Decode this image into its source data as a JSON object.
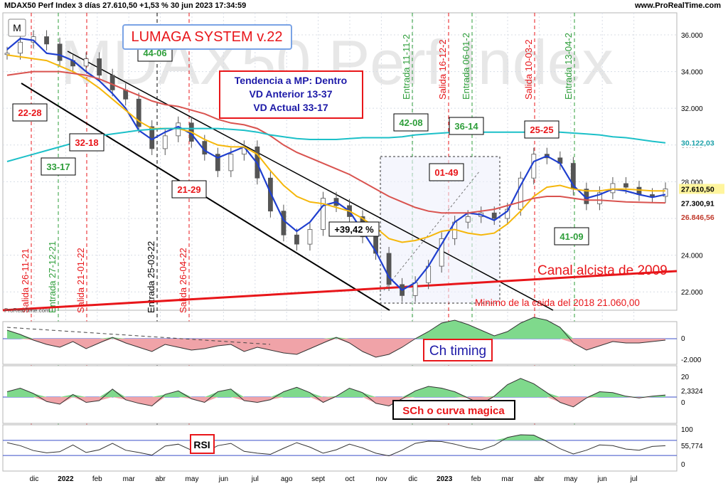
{
  "header": {
    "title": "MDAX50 Perf Index 3 días 27.610,50 +1,53 % 30 jun 2023 17:34:59",
    "site": "www.ProRealTime.com",
    "m_label": "M"
  },
  "colors": {
    "grid": "#d8dde6",
    "candle": "#555555",
    "ma_fast": "#1f3fcf",
    "ma_mid": "#f5b70b",
    "ma_slow": "#d9534f",
    "ma_long": "#1cc0c8",
    "channel": "#000000",
    "trend_red": "#e8161a",
    "entry_green": "#2e9e3a",
    "exit_red": "#e8161a",
    "ind_pos": "#7fd98c",
    "ind_neg": "#f0a3a8"
  },
  "chart_data": [
    {
      "type": "line",
      "title": "MDAX50 Perf Index",
      "watermark": "MDAX50 Perf Index",
      "system_label": "LUMAGA SYSTEM v.22",
      "ylim": [
        21000,
        37200
      ],
      "y_ticks": [
        "36.000",
        "34.000",
        "32.000",
        "30.000",
        "28.000",
        "26.000",
        "24.000",
        "22.000"
      ],
      "y_tick_values": [
        36000,
        34000,
        32000,
        30000,
        28000,
        26000,
        24000,
        22000
      ],
      "x_labels": [
        "dic",
        "2022",
        "feb",
        "mar",
        "abr",
        "may",
        "jun",
        "jul",
        "ago",
        "sept",
        "oct",
        "nov",
        "dic",
        "2023",
        "feb",
        "mar",
        "abr",
        "may",
        "jun",
        "jul"
      ],
      "price_labels": {
        "last": "27.610,50",
        "fast": "27.300,91",
        "slow": "26.846,56",
        "long": "30.122,03"
      },
      "series": [
        {
          "name": "price",
          "values": [
            35000,
            35600,
            35900,
            35500,
            34600,
            34300,
            34700,
            33800,
            33000,
            32500,
            31000,
            29800,
            30500,
            31200,
            30200,
            29500,
            28600,
            29500,
            29900,
            28200,
            26400,
            25100,
            24600,
            25400,
            27100,
            26700,
            26100,
            25000,
            24100,
            22400,
            21800,
            22500,
            23400,
            24900,
            25800,
            26100,
            26300,
            26000,
            26500,
            28200,
            29500,
            29300,
            29000,
            27600,
            26800,
            27400,
            27900,
            27700,
            27300,
            27200,
            27610
          ]
        },
        {
          "name": "ma_fast",
          "values": [
            35200,
            35800,
            35700,
            35000,
            34900,
            34600,
            34000,
            33500,
            32800,
            32000,
            30800,
            30300,
            30700,
            31000,
            30600,
            29700,
            29300,
            29600,
            29900,
            29000,
            27400,
            25900,
            25300,
            25800,
            26700,
            26900,
            26400,
            25300,
            24200,
            22800,
            22100,
            22500,
            23400,
            24600,
            25800,
            26300,
            26200,
            25900,
            26400,
            27800,
            29100,
            29400,
            29000,
            27800,
            27100,
            27300,
            27600,
            27500,
            27300,
            27150,
            27300
          ]
        },
        {
          "name": "ma_mid",
          "values": [
            34900,
            34800,
            34700,
            34600,
            34300,
            34000,
            33600,
            33100,
            32500,
            31900,
            31300,
            30900,
            30900,
            30900,
            30700,
            30300,
            30000,
            29900,
            29900,
            29500,
            28600,
            27800,
            27200,
            26900,
            26800,
            26600,
            26400,
            26000,
            25500,
            24900,
            24700,
            24800,
            25000,
            25300,
            25400,
            25200,
            25100,
            25200,
            25700,
            26400,
            27200,
            27700,
            27800,
            27600,
            27500,
            27500,
            27600,
            27600,
            27550,
            27500,
            27500
          ]
        },
        {
          "name": "ma_slow",
          "values": [
            33800,
            33900,
            34000,
            34000,
            34000,
            33900,
            33800,
            33600,
            33300,
            33000,
            32700,
            32400,
            32200,
            32100,
            31900,
            31700,
            31400,
            31200,
            31100,
            30900,
            30500,
            30000,
            29600,
            29300,
            29000,
            28700,
            28400,
            28000,
            27600,
            27200,
            26900,
            26600,
            26400,
            26300,
            26300,
            26300,
            26400,
            26500,
            26700,
            26900,
            27100,
            27200,
            27200,
            27100,
            27000,
            27000,
            26950,
            26900,
            26880,
            26860,
            26850
          ]
        },
        {
          "name": "ma_long",
          "values": [
            29100,
            29300,
            29500,
            29700,
            29900,
            30100,
            30300,
            30500,
            30600,
            30700,
            30800,
            30850,
            30900,
            30900,
            30900,
            30900,
            30900,
            30850,
            30800,
            30700,
            30550,
            30450,
            30350,
            30300,
            30300,
            30300,
            30350,
            30400,
            30400,
            30400,
            30450,
            30550,
            30600,
            30650,
            30700,
            30700,
            30700,
            30700,
            30700,
            30700,
            30700,
            30700,
            30700,
            30650,
            30600,
            30550,
            30450,
            30400,
            30300,
            30200,
            30120
          ]
        }
      ],
      "annotations": {
        "signals": [
          {
            "kind": "exit",
            "text": "Salida 26-11-21"
          },
          {
            "kind": "entry",
            "text": "Entrada 27-12-21"
          },
          {
            "kind": "exit",
            "text": "Salida 21-01-22"
          },
          {
            "kind": "entry_black",
            "text": "Entrada 25-03-22"
          },
          {
            "kind": "exit",
            "text": "Salida 26-04-22"
          },
          {
            "kind": "entry",
            "text": "Entrada 11-11-2"
          },
          {
            "kind": "exit",
            "text": "Salida 16-12-2"
          },
          {
            "kind": "entry",
            "text": "Entrada 06-01-2"
          },
          {
            "kind": "exit",
            "text": "Salida 10-03-2"
          },
          {
            "kind": "entry",
            "text": "Entrada 13-04-2"
          }
        ],
        "boxes": [
          {
            "text": "22-28",
            "color": "red"
          },
          {
            "text": "33-17",
            "color": "green"
          },
          {
            "text": "32-18",
            "color": "red"
          },
          {
            "text": "44-06",
            "color": "green"
          },
          {
            "text": "21-29",
            "color": "red"
          },
          {
            "text": "42-08",
            "color": "green"
          },
          {
            "text": "01-49",
            "color": "red"
          },
          {
            "text": "36-14",
            "color": "green"
          },
          {
            "text": "25-25",
            "color": "red"
          },
          {
            "text": "41-09",
            "color": "green"
          }
        ],
        "status_lines": [
          "Tendencia a MP: Dentro",
          "VD Anterior 13-37",
          "VD Actual 33-17"
        ],
        "pct_label": "+39,42 %",
        "trend_label": "Canal alcista de 2009",
        "min_label": "Minimo de la caida del 2018  21.060,00",
        "logo_text": "ProRealTime.com"
      }
    },
    {
      "type": "area",
      "title": "Ch timing",
      "y_ticks": [
        "0",
        "-2.000"
      ],
      "values": [
        600,
        300,
        -100,
        -400,
        -600,
        -200,
        -700,
        -300,
        100,
        -300,
        -600,
        -900,
        -400,
        -600,
        -800,
        -700,
        -500,
        -400,
        -900,
        -600,
        -800,
        -1000,
        -1100,
        -700,
        -300,
        100,
        -300,
        -900,
        -1300,
        -1100,
        -600,
        0,
        500,
        1100,
        1300,
        1000,
        600,
        200,
        500,
        1100,
        1500,
        1300,
        800,
        -300,
        -800,
        -500,
        -200,
        -300,
        -300,
        -200,
        -100
      ]
    },
    {
      "type": "area",
      "title": "SCh o curva magica",
      "y_ticks": [
        "20",
        "2,3324",
        "0"
      ],
      "values": [
        6,
        10,
        4,
        -5,
        -8,
        3,
        -6,
        -4,
        9,
        -3,
        -7,
        -10,
        3,
        7,
        -2,
        -6,
        6,
        9,
        -4,
        -6,
        -3,
        6,
        11,
        5,
        -6,
        1,
        10,
        5,
        -7,
        -10,
        -2,
        7,
        12,
        10,
        6,
        -1,
        -8,
        1,
        14,
        21,
        15,
        5,
        -6,
        -11,
        -1,
        6,
        5,
        1,
        -1,
        1,
        2.33
      ]
    },
    {
      "type": "line",
      "title": "RSI",
      "y_ticks": [
        "100",
        "55,774",
        "0"
      ],
      "values": [
        64,
        56,
        43,
        37,
        40,
        58,
        38,
        45,
        62,
        44,
        38,
        31,
        55,
        60,
        44,
        38,
        56,
        62,
        41,
        36,
        33,
        49,
        64,
        52,
        36,
        45,
        60,
        50,
        36,
        29,
        44,
        62,
        68,
        67,
        60,
        51,
        45,
        57,
        78,
        85,
        84,
        67,
        48,
        34,
        44,
        58,
        56,
        47,
        44,
        54,
        55.77
      ]
    }
  ]
}
